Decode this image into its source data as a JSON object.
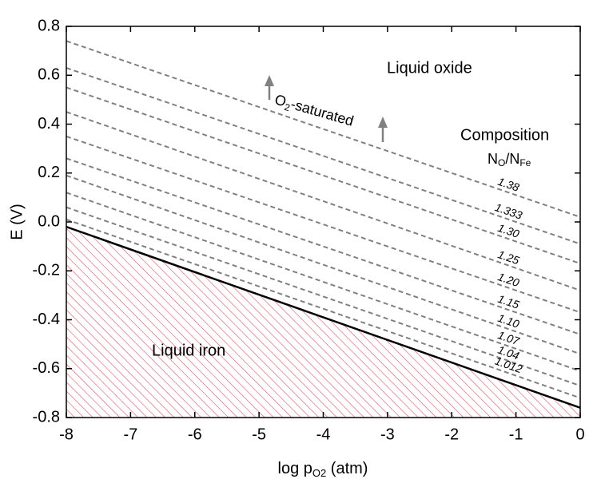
{
  "chart_data": {
    "type": "line",
    "x": [
      -8,
      0
    ],
    "xlim": [
      -8,
      0
    ],
    "ylim": [
      -0.8,
      0.8
    ],
    "xticks": [
      -8,
      -7,
      -6,
      -5,
      -4,
      -3,
      -2,
      -1,
      0
    ],
    "yticks": [
      -0.8,
      -0.6,
      -0.4,
      -0.2,
      {
        "value": 0,
        "label": "0.0"
      },
      0.2,
      0.4,
      0.6,
      0.8
    ],
    "xlabel": [
      "log p",
      "O2",
      " (atm)"
    ],
    "ylabel": "E (V)",
    "boundary": {
      "color": "#000000",
      "hatch_color": "#e8506a",
      "values": [
        -0.02,
        -0.76
      ]
    },
    "series": [
      {
        "name": "1.38",
        "color": "#808080",
        "values": [
          0.74,
          0.02
        ]
      },
      {
        "name": "1.333",
        "color": "#808080",
        "values": [
          0.63,
          -0.09
        ]
      },
      {
        "name": "1.30",
        "color": "#808080",
        "values": [
          0.55,
          -0.17
        ]
      },
      {
        "name": "1.25",
        "color": "#808080",
        "values": [
          0.45,
          -0.28
        ]
      },
      {
        "name": "1.20",
        "color": "#808080",
        "values": [
          0.35,
          -0.37
        ]
      },
      {
        "name": "1.15",
        "color": "#808080",
        "values": [
          0.26,
          -0.46
        ]
      },
      {
        "name": "1.10",
        "color": "#808080",
        "values": [
          0.19,
          -0.54
        ]
      },
      {
        "name": "1.07",
        "color": "#808080",
        "values": [
          0.12,
          -0.61
        ]
      },
      {
        "name": "1.04",
        "color": "#808080",
        "values": [
          0.06,
          -0.67
        ]
      },
      {
        "name": "1.012",
        "color": "#808080",
        "values": [
          0.01,
          -0.72
        ]
      }
    ],
    "annotations": {
      "liquid_oxide": "Liquid oxide",
      "liquid_iron": "Liquid iron",
      "o2_saturated": [
        "O",
        "2",
        "-saturated"
      ],
      "composition": "Composition",
      "ratio": [
        "N",
        "O",
        "/N",
        "Fe"
      ]
    }
  }
}
